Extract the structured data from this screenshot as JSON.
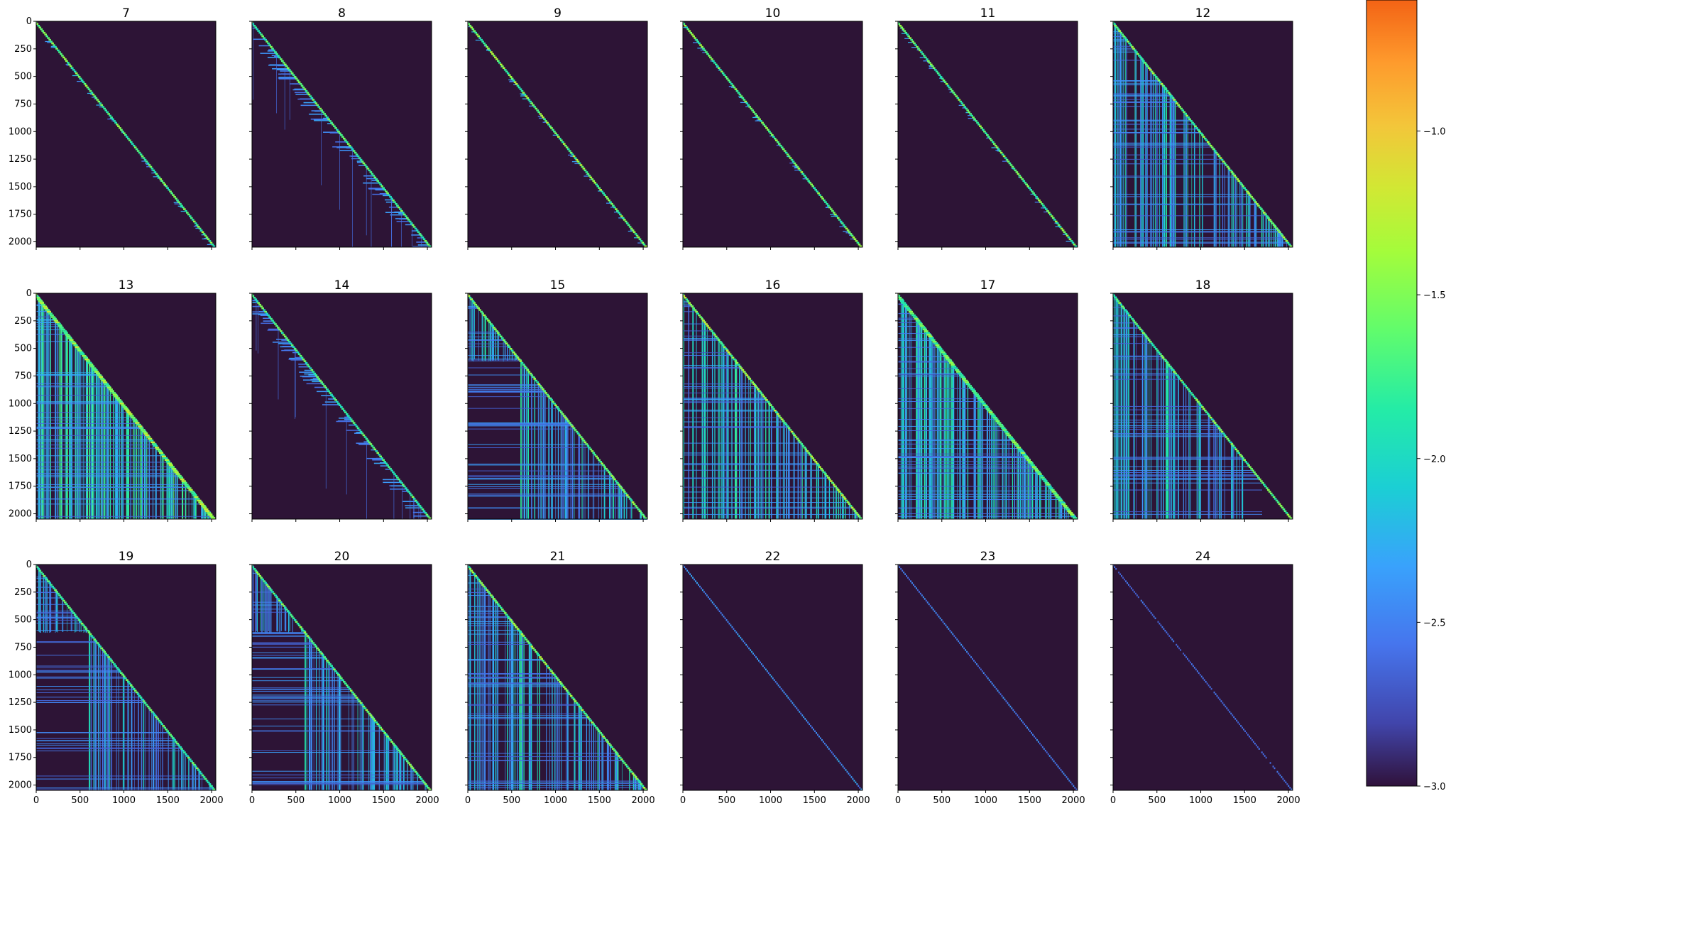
{
  "chart_data": {
    "type": "heatmap",
    "panels": [
      {
        "title": "7",
        "pattern": "diag",
        "intensity": 0.85
      },
      {
        "title": "8",
        "pattern": "diagband",
        "intensity": 0.8
      },
      {
        "title": "9",
        "pattern": "diag",
        "intensity": 0.9
      },
      {
        "title": "10",
        "pattern": "diag",
        "intensity": 0.85
      },
      {
        "title": "11",
        "pattern": "diag",
        "intensity": 0.85
      },
      {
        "title": "12",
        "pattern": "stripes",
        "intensity": 0.9
      },
      {
        "title": "13",
        "pattern": "dense",
        "intensity": 0.95
      },
      {
        "title": "14",
        "pattern": "diagband",
        "intensity": 0.8
      },
      {
        "title": "15",
        "pattern": "block",
        "intensity": 0.9
      },
      {
        "title": "16",
        "pattern": "stripes",
        "intensity": 0.95
      },
      {
        "title": "17",
        "pattern": "dense",
        "intensity": 0.85
      },
      {
        "title": "18",
        "pattern": "truncated",
        "intensity": 0.85
      },
      {
        "title": "19",
        "pattern": "block",
        "intensity": 0.8
      },
      {
        "title": "20",
        "pattern": "block",
        "intensity": 0.85
      },
      {
        "title": "21",
        "pattern": "stripes",
        "intensity": 0.9
      },
      {
        "title": "22",
        "pattern": "thin",
        "intensity": 0.6
      },
      {
        "title": "23",
        "pattern": "thin",
        "intensity": 0.5
      },
      {
        "title": "24",
        "pattern": "thin",
        "intensity": 0.4
      }
    ],
    "grid": {
      "rows": 3,
      "cols": 6
    },
    "xlim": [
      0,
      2048
    ],
    "ylim": [
      2048,
      0
    ],
    "x_ticks": [
      "0",
      "500",
      "1000",
      "1500",
      "2000"
    ],
    "y_ticks": [
      "0",
      "250",
      "500",
      "750",
      "1000",
      "1250",
      "1500",
      "1750",
      "2000"
    ],
    "colorbar": {
      "colormap": "turbo",
      "range": [
        -3.0,
        -0.6
      ],
      "ticks": [
        "-1.0",
        "-1.5",
        "-2.0",
        "-2.5",
        "-3.0"
      ]
    },
    "background_color": "#2d1436"
  }
}
